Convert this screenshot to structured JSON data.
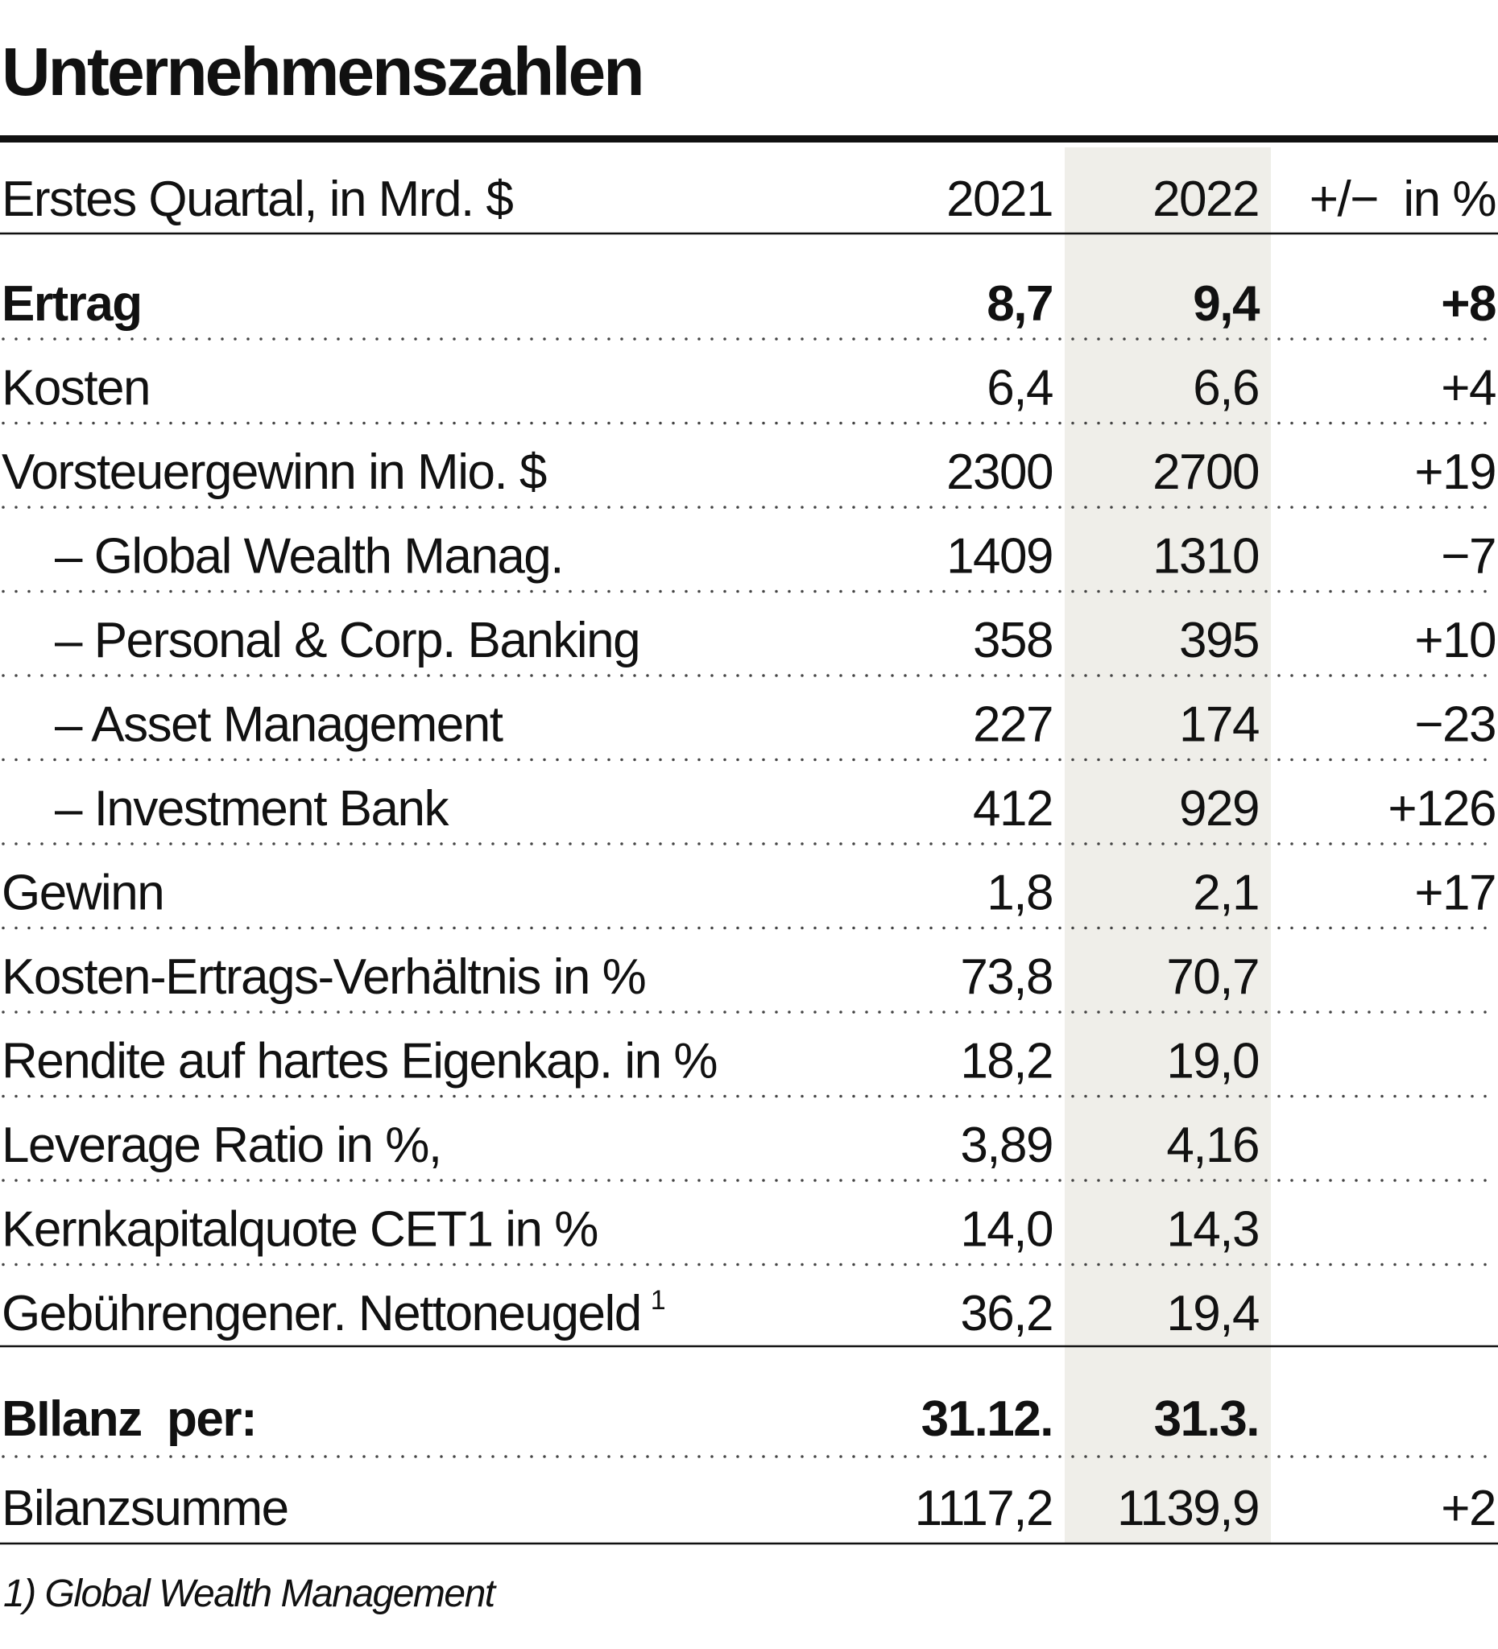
{
  "title": "Unternehmenszahlen",
  "table": {
    "header": [
      "Erstes Quartal, in Mrd. $",
      "2021",
      "2022",
      "+/−  in %"
    ],
    "rows": [
      {
        "label": "Ertrag",
        "values": [
          "8,7",
          "9,4",
          "+8"
        ]
      },
      {
        "label": "Kosten",
        "values": [
          "6,4",
          "6,6",
          "+4"
        ]
      },
      {
        "label": "Vorsteuergewinn in Mio. $",
        "values": [
          "2300",
          "2700",
          "+19"
        ]
      },
      {
        "label": "– Global Wealth Manag.",
        "values": [
          "1409",
          "1310",
          "−7"
        ]
      },
      {
        "label": "– Personal & Corp. Banking",
        "values": [
          "358",
          "395",
          "+10"
        ]
      },
      {
        "label": "– Asset Management",
        "values": [
          "227",
          "174",
          "−23"
        ]
      },
      {
        "label": "– Investment Bank",
        "values": [
          "412",
          "929",
          "+126"
        ]
      },
      {
        "label": "Gewinn",
        "values": [
          "1,8",
          "2,1",
          "+17"
        ]
      },
      {
        "label": "Kosten-Ertrags-Verhältnis in %",
        "values": [
          "73,8",
          "70,7"
        ]
      },
      {
        "label": "Rendite auf hartes Eigenkap. in %",
        "values": [
          "18,2",
          "19,0"
        ]
      },
      {
        "label": "Leverage Ratio in %,",
        "values": [
          "3,89",
          "4,16"
        ]
      },
      {
        "label": "Kernkapitalquote CET1 in %",
        "values": [
          "14,0",
          "14,3"
        ]
      },
      {
        "label": "Gebührengener. Nettoneugeld",
        "note": "1",
        "values": [
          "36,2",
          "19,4"
        ]
      }
    ],
    "bilanz_header": [
      "BIlanz  per:",
      "31.12.",
      "31.3."
    ],
    "bilanz_rows": [
      {
        "label": "Bilanzsumme",
        "values": [
          "1117,2",
          "1139,9",
          "+2"
        ]
      }
    ]
  },
  "footnote": "1) Global Wealth Management"
}
